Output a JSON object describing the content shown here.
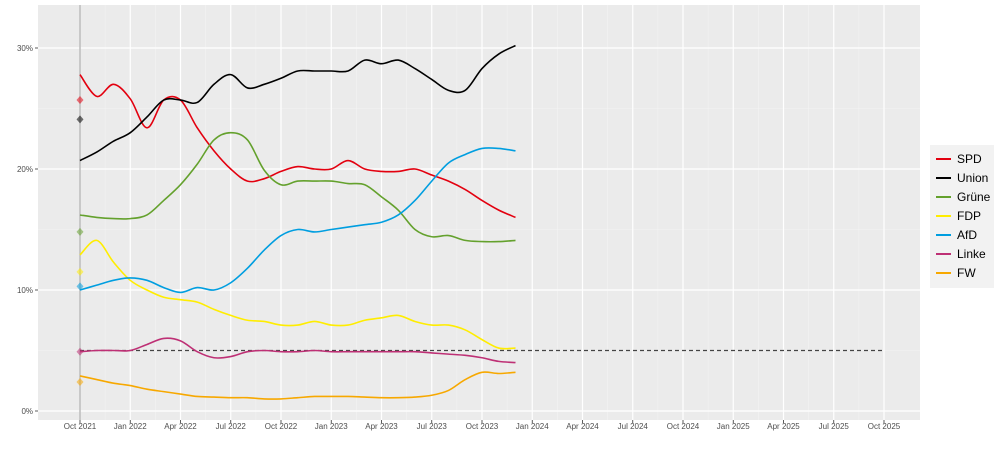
{
  "chart_data": {
    "type": "line",
    "title": "",
    "xlabel": "",
    "ylabel": "",
    "ylim": [
      0,
      33
    ],
    "y_ticks": [
      "0%",
      "10%",
      "20%",
      "30%"
    ],
    "y_tick_values": [
      0,
      10,
      20,
      30
    ],
    "x_ticks": [
      "Oct 2021",
      "Jan 2022",
      "Apr 2022",
      "Jul 2022",
      "Oct 2022",
      "Jan 2023",
      "Apr 2023",
      "Jul 2023",
      "Oct 2023",
      "Jan 2024",
      "Apr 2024",
      "Jul 2024",
      "Oct 2024",
      "Jan 2025",
      "Apr 2025",
      "Jul 2025",
      "Oct 2025"
    ],
    "x_unit": "months since Oct 2021",
    "x": [
      0,
      1,
      2,
      3,
      4,
      5,
      6,
      7,
      8,
      9,
      10,
      11,
      12,
      13,
      14,
      15,
      16,
      17,
      18,
      19,
      20,
      21,
      22,
      23,
      24,
      25,
      26
    ],
    "grid": true,
    "legend_position": "right",
    "threshold": {
      "value": 5,
      "from_month": 0,
      "to_month": 48,
      "style": "dashed"
    },
    "election_marker_month": 0,
    "series": [
      {
        "name": "SPD",
        "color": "#E3000F",
        "election": 25.7,
        "values": [
          27.8,
          26.0,
          27.0,
          25.8,
          23.4,
          25.7,
          25.7,
          23.4,
          21.5,
          20.0,
          19.0,
          19.2,
          19.8,
          20.2,
          20.0,
          20.0,
          20.7,
          20.0,
          19.8,
          19.8,
          20.0,
          19.5,
          19.0,
          18.3,
          17.4,
          16.6,
          16.0
        ]
      },
      {
        "name": "Union",
        "color": "#000000",
        "election": 24.1,
        "values": [
          20.7,
          21.4,
          22.3,
          23.0,
          24.3,
          25.7,
          25.7,
          25.5,
          27.0,
          27.8,
          26.7,
          27.0,
          27.5,
          28.1,
          28.1,
          28.1,
          28.1,
          29.0,
          28.7,
          29.0,
          28.3,
          27.4,
          26.5,
          26.5,
          28.3,
          29.5,
          30.2
        ]
      },
      {
        "name": "Grüne",
        "color": "#64A12D",
        "election": 14.8,
        "values": [
          16.2,
          16.0,
          15.9,
          15.9,
          16.2,
          17.4,
          18.7,
          20.4,
          22.4,
          23.0,
          22.4,
          19.9,
          18.7,
          19.0,
          19.0,
          19.0,
          18.8,
          18.7,
          17.7,
          16.6,
          15.0,
          14.4,
          14.5,
          14.1,
          14.0,
          14.0,
          14.1
        ]
      },
      {
        "name": "FDP",
        "color": "#FFED00",
        "election": 11.5,
        "values": [
          12.9,
          14.1,
          12.3,
          10.8,
          10.0,
          9.4,
          9.2,
          9.0,
          8.4,
          7.9,
          7.5,
          7.4,
          7.1,
          7.1,
          7.4,
          7.1,
          7.1,
          7.5,
          7.7,
          7.9,
          7.4,
          7.1,
          7.1,
          6.7,
          5.9,
          5.2,
          5.2
        ]
      },
      {
        "name": "AfD",
        "color": "#009EE0",
        "election": 10.3,
        "values": [
          10.0,
          10.4,
          10.8,
          11.0,
          10.8,
          10.2,
          9.8,
          10.2,
          10.0,
          10.6,
          11.8,
          13.3,
          14.5,
          15.0,
          14.8,
          15.0,
          15.2,
          15.4,
          15.6,
          16.2,
          17.4,
          19.0,
          20.5,
          21.2,
          21.7,
          21.7,
          21.5
        ]
      },
      {
        "name": "Linke",
        "color": "#BE3075",
        "election": 4.9,
        "values": [
          4.9,
          5.0,
          5.0,
          5.0,
          5.5,
          6.0,
          5.8,
          4.9,
          4.4,
          4.5,
          4.9,
          5.0,
          4.9,
          4.9,
          5.0,
          4.9,
          4.9,
          4.9,
          4.9,
          4.9,
          4.9,
          4.8,
          4.7,
          4.6,
          4.4,
          4.1,
          4.0
        ]
      },
      {
        "name": "FW",
        "color": "#F7A800",
        "election": 2.4,
        "values": [
          2.9,
          2.6,
          2.3,
          2.1,
          1.8,
          1.6,
          1.4,
          1.2,
          1.15,
          1.1,
          1.1,
          1.0,
          1.0,
          1.1,
          1.2,
          1.2,
          1.2,
          1.15,
          1.1,
          1.1,
          1.15,
          1.3,
          1.7,
          2.6,
          3.2,
          3.1,
          3.2
        ]
      }
    ]
  }
}
